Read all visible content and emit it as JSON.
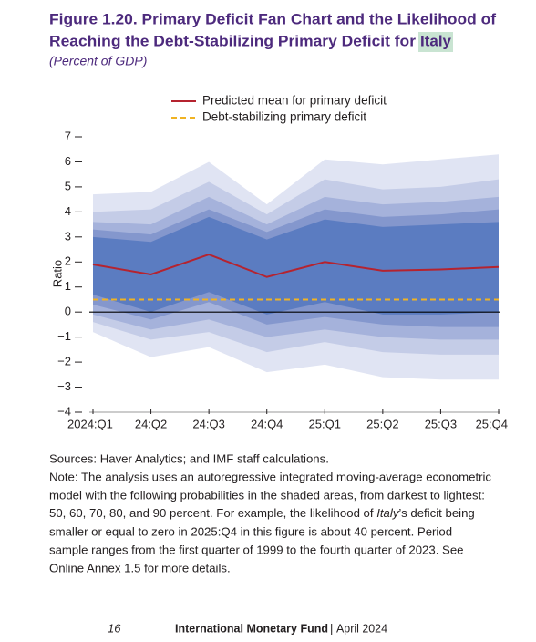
{
  "chart_data": {
    "type": "fan",
    "title_parts": [
      "Figure 1.20. Primary Deficit Fan Chart and the Likelihood of",
      "Reaching the Debt-Stabilizing Primary Deficit for",
      "Italy"
    ],
    "subtitle": "(Percent of GDP)",
    "y_label": "Ratio",
    "categories": [
      "2024:Q1",
      "24:Q2",
      "24:Q3",
      "24:Q4",
      "25:Q1",
      "25:Q2",
      "25:Q3",
      "25:Q4"
    ],
    "ylim": [
      -4,
      7
    ],
    "yticks": [
      {
        "value": -4,
        "label": "−4"
      },
      {
        "value": -3,
        "label": "−3"
      },
      {
        "value": -2,
        "label": "−2"
      },
      {
        "value": -1,
        "label": "−1"
      },
      0,
      1,
      2,
      3,
      4,
      5,
      6,
      7
    ],
    "bands": [
      {
        "color": "#5b7cc1",
        "upper": [
          3.0,
          2.8,
          3.8,
          2.9,
          3.7,
          3.4,
          3.5,
          3.6
        ],
        "lower": [
          0.7,
          0.0,
          0.8,
          -0.1,
          0.4,
          -0.1,
          -0.1,
          0.0
        ]
      },
      {
        "color": "#8497cd",
        "upper": [
          3.3,
          3.1,
          4.1,
          3.2,
          4.1,
          3.8,
          3.9,
          4.1
        ],
        "lower": [
          0.3,
          -0.3,
          0.4,
          -0.5,
          -0.2,
          -0.5,
          -0.6,
          -0.6
        ]
      },
      {
        "color": "#a5b2db",
        "upper": [
          3.6,
          3.5,
          4.6,
          3.5,
          4.6,
          4.3,
          4.4,
          4.6
        ],
        "lower": [
          -0.1,
          -0.7,
          -0.3,
          -1.0,
          -0.7,
          -1.0,
          -1.1,
          -1.1
        ]
      },
      {
        "color": "#c4cce7",
        "upper": [
          4.0,
          4.1,
          5.2,
          3.9,
          5.3,
          4.9,
          5.0,
          5.3
        ],
        "lower": [
          -0.4,
          -1.1,
          -0.8,
          -1.6,
          -1.2,
          -1.6,
          -1.7,
          -1.7
        ]
      },
      {
        "color": "#e0e4f3",
        "upper": [
          4.7,
          4.8,
          6.0,
          4.3,
          6.1,
          5.9,
          6.1,
          6.3
        ],
        "lower": [
          -0.8,
          -1.8,
          -1.4,
          -2.4,
          -2.1,
          -2.6,
          -2.7,
          -2.7
        ]
      }
    ],
    "series": [
      {
        "name": "Predicted mean for primary deficit",
        "color": "#b5232f",
        "dashed": false,
        "values": [
          1.9,
          1.5,
          2.3,
          1.4,
          2.0,
          1.65,
          1.7,
          1.8
        ]
      },
      {
        "name": "Debt-stabilizing primary deficit",
        "color": "#f0b323",
        "dashed": true,
        "values": [
          0.5,
          0.5,
          0.5,
          0.5,
          0.5,
          0.5,
          0.5,
          0.5
        ]
      }
    ],
    "sources": "Sources: Haver Analytics; and IMF staff calculations.",
    "note_lines": [
      "Note: The analysis uses an autoregressive integrated moving-average econometric",
      "model with the following probabilities in the shaded areas, from darkest to lightest:",
      [
        "50, 60, 70, 80, and 90 percent. For example, the likelihood of ",
        "Italy",
        "’s deficit being"
      ],
      "smaller or equal to zero in 2025:Q4 in this figure is about 40 percent. Period",
      "sample ranges from the first quarter of 1999 to the fourth quarter of 2023. See",
      "Online Annex 1.5 for more details."
    ]
  },
  "footer": {
    "page": "16",
    "publisher": "International Monetary Fund",
    "date": "April 2024"
  }
}
